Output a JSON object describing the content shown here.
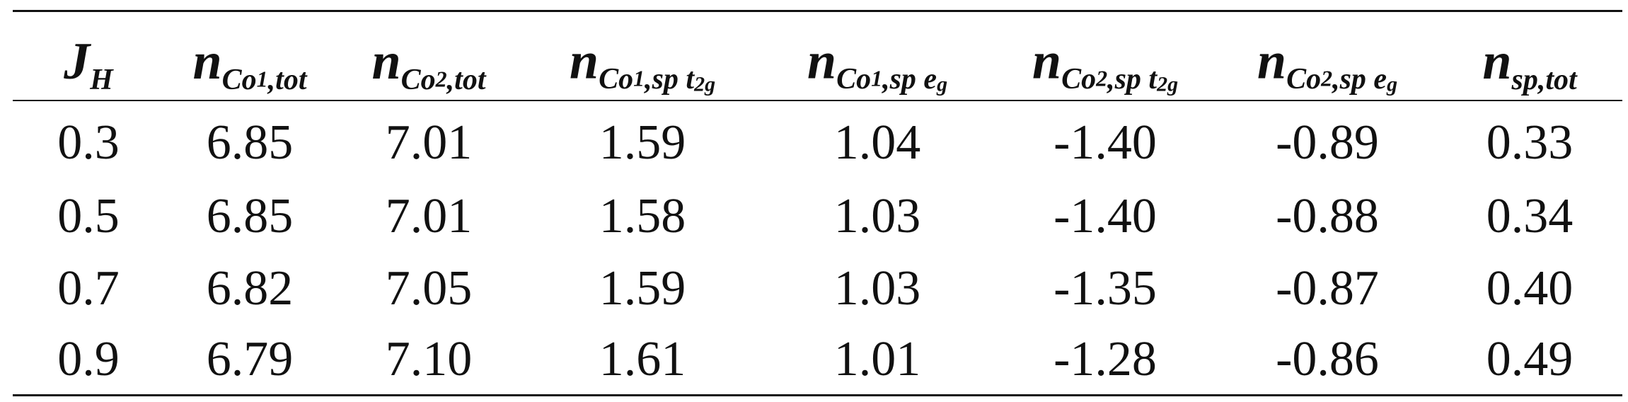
{
  "table": {
    "headers": [
      [
        {
          "main": "J"
        },
        {
          "sub": "H"
        }
      ],
      [
        {
          "main": "n"
        },
        {
          "sub": "Co"
        },
        {
          "sub2": "1"
        },
        {
          "sub": ",tot"
        }
      ],
      [
        {
          "main": "n"
        },
        {
          "sub": "Co"
        },
        {
          "sub2": "2"
        },
        {
          "sub": ",tot"
        }
      ],
      [
        {
          "main": "n"
        },
        {
          "sub": "Co"
        },
        {
          "sub2": "1"
        },
        {
          "sub": ",sp t"
        },
        {
          "sub3": "2g"
        }
      ],
      [
        {
          "main": "n"
        },
        {
          "sub": "Co"
        },
        {
          "sub2": "1"
        },
        {
          "sub": ",sp e"
        },
        {
          "sub3": "g"
        }
      ],
      [
        {
          "main": "n"
        },
        {
          "sub": "Co"
        },
        {
          "sub2": "2"
        },
        {
          "sub": ",sp t"
        },
        {
          "sub3": "2g"
        }
      ],
      [
        {
          "main": "n"
        },
        {
          "sub": "Co"
        },
        {
          "sub2": "2"
        },
        {
          "sub": ",sp e"
        },
        {
          "sub3": "g"
        }
      ],
      [
        {
          "main": "n"
        },
        {
          "sub": "sp,tot"
        }
      ]
    ],
    "rows": [
      [
        "0.3",
        "6.85",
        "7.01",
        "1.59",
        "1.04",
        "-1.40",
        "-0.89",
        "0.33"
      ],
      [
        "0.5",
        "6.85",
        "7.01",
        "1.58",
        "1.03",
        "-1.40",
        "-0.88",
        "0.34"
      ],
      [
        "0.7",
        "6.82",
        "7.05",
        "1.59",
        "1.03",
        "-1.35",
        "-0.87",
        "0.40"
      ],
      [
        "0.9",
        "6.79",
        "7.10",
        "1.61",
        "1.01",
        "-1.28",
        "-0.86",
        "0.49"
      ]
    ]
  }
}
